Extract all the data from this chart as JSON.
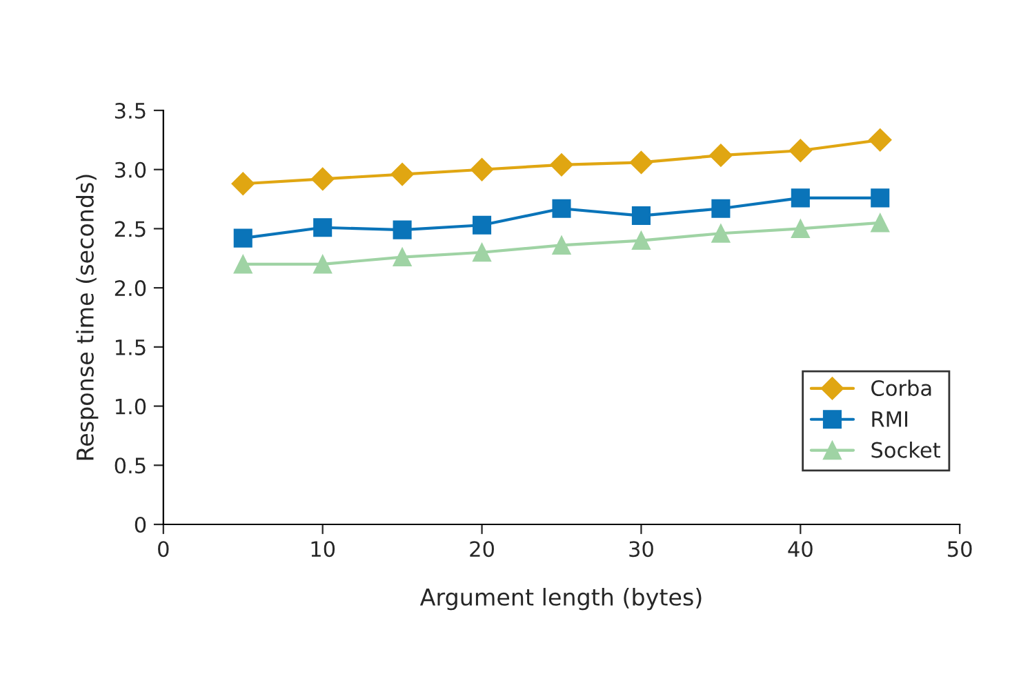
{
  "chart_data": {
    "type": "line",
    "xlabel": "Argument length (bytes)",
    "ylabel": "Response time (seconds)",
    "x": [
      5,
      10,
      15,
      20,
      25,
      30,
      35,
      40,
      45
    ],
    "series": [
      {
        "name": "Corba",
        "color": "#e0a612",
        "marker": "diamond",
        "values": [
          2.88,
          2.92,
          2.96,
          3.0,
          3.04,
          3.06,
          3.12,
          3.16,
          3.25
        ]
      },
      {
        "name": "RMI",
        "color": "#0a74b9",
        "marker": "square",
        "values": [
          2.42,
          2.51,
          2.49,
          2.53,
          2.67,
          2.61,
          2.67,
          2.76,
          2.76
        ]
      },
      {
        "name": "Socket",
        "color": "#9fd3a4",
        "marker": "triangle",
        "values": [
          2.2,
          2.2,
          2.26,
          2.3,
          2.36,
          2.4,
          2.46,
          2.5,
          2.55
        ]
      }
    ],
    "xlim": [
      0,
      50
    ],
    "xticks": [
      0,
      10,
      20,
      30,
      40,
      50
    ],
    "ylim": [
      0,
      3.5
    ],
    "yticks": [
      0,
      0.5,
      {
        "value": 1,
        "label": "1.0"
      },
      1.5,
      {
        "value": 2,
        "label": "2.0"
      },
      2.5,
      {
        "value": 3,
        "label": "3.0"
      },
      3.5
    ],
    "grid": false,
    "legend": "right",
    "line_style": "solid"
  }
}
